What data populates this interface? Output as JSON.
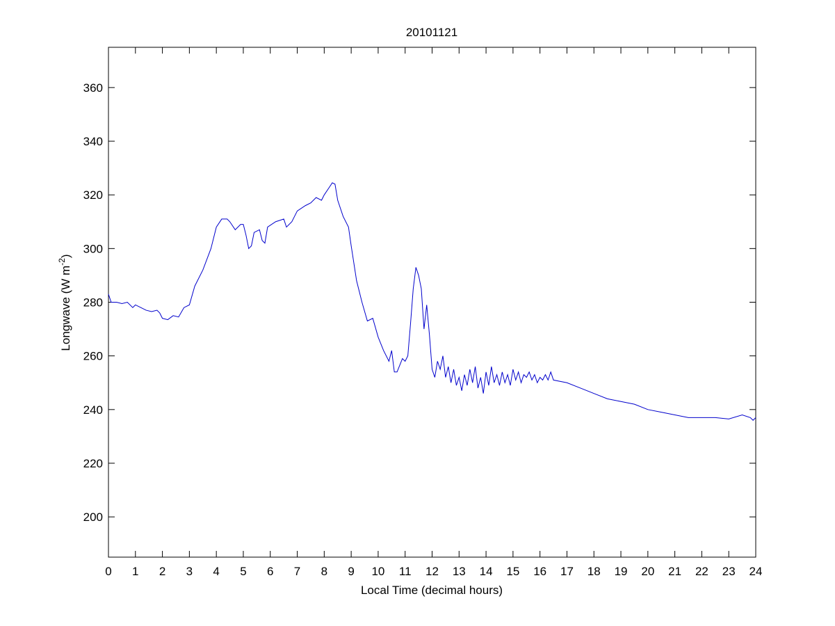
{
  "chart_data": {
    "type": "line",
    "title": "20101121",
    "xlabel": "Local Time (decimal hours)",
    "ylabel": {
      "text": "Longwave (W m",
      "superscript": "-2",
      "suffix": ")"
    },
    "xlim": [
      0,
      24
    ],
    "ylim": [
      185,
      375
    ],
    "xticks": [
      0,
      1,
      2,
      3,
      4,
      5,
      6,
      7,
      8,
      9,
      10,
      11,
      12,
      13,
      14,
      15,
      16,
      17,
      18,
      19,
      20,
      21,
      22,
      23,
      24
    ],
    "yticks": [
      200,
      220,
      240,
      260,
      280,
      300,
      320,
      340,
      360
    ],
    "grid": false,
    "color": "#0000cc",
    "x": [
      0,
      0.1,
      0.3,
      0.5,
      0.7,
      0.9,
      1,
      1.2,
      1.4,
      1.6,
      1.8,
      1.9,
      2,
      2.2,
      2.4,
      2.6,
      2.8,
      3,
      3.2,
      3.5,
      3.8,
      4,
      4.2,
      4.4,
      4.5,
      4.7,
      4.9,
      5,
      5.1,
      5.2,
      5.3,
      5.4,
      5.6,
      5.7,
      5.8,
      5.9,
      6.2,
      6.5,
      6.6,
      6.8,
      7,
      7.3,
      7.5,
      7.7,
      7.9,
      8,
      8.2,
      8.3,
      8.4,
      8.5,
      8.7,
      8.9,
      9,
      9.2,
      9.4,
      9.6,
      9.8,
      10,
      10.2,
      10.4,
      10.5,
      10.6,
      10.7,
      10.9,
      11,
      11.1,
      11.2,
      11.3,
      11.4,
      11.5,
      11.6,
      11.7,
      11.8,
      11.9,
      12,
      12.1,
      12.2,
      12.3,
      12.4,
      12.5,
      12.6,
      12.7,
      12.8,
      12.9,
      13,
      13.1,
      13.2,
      13.3,
      13.4,
      13.5,
      13.6,
      13.7,
      13.8,
      13.9,
      14,
      14.1,
      14.2,
      14.3,
      14.4,
      14.5,
      14.6,
      14.7,
      14.8,
      14.9,
      15,
      15.1,
      15.2,
      15.3,
      15.4,
      15.5,
      15.6,
      15.7,
      15.8,
      15.9,
      16,
      16.1,
      16.2,
      16.3,
      16.4,
      16.5,
      17,
      17.5,
      18,
      18.5,
      19,
      19.5,
      20,
      20.5,
      21,
      21.5,
      22,
      22.5,
      23,
      23.5,
      23.8,
      23.9,
      24
    ],
    "values": [
      283,
      280,
      280,
      279.5,
      280,
      278,
      279,
      278,
      277,
      276.5,
      277,
      276,
      274,
      273.5,
      275,
      274.5,
      278,
      279,
      286,
      292,
      300,
      308,
      311,
      311,
      310,
      307,
      309,
      309,
      305,
      300,
      301,
      306,
      307,
      303,
      302,
      308,
      310,
      311,
      308,
      310,
      314,
      316,
      317,
      319,
      318,
      320,
      323,
      324.5,
      324,
      318,
      312,
      308,
      301,
      288,
      280,
      273,
      274,
      267,
      262,
      258,
      262,
      254,
      254,
      259,
      258,
      260,
      272,
      285,
      293,
      290,
      285,
      270,
      279,
      268,
      255,
      252,
      258,
      255,
      260,
      252,
      256,
      250,
      255,
      249,
      252,
      247,
      253,
      249,
      255,
      250,
      256,
      248,
      252,
      246,
      254,
      249,
      256,
      250,
      253,
      249,
      254,
      250,
      253,
      249,
      255,
      251,
      254,
      250,
      253,
      252,
      254,
      251,
      253,
      250,
      252,
      251,
      253,
      251,
      254,
      251,
      250,
      248,
      246,
      244,
      243,
      242,
      240,
      239,
      238,
      237,
      237,
      237,
      236.5,
      238,
      237,
      236,
      237
    ]
  }
}
